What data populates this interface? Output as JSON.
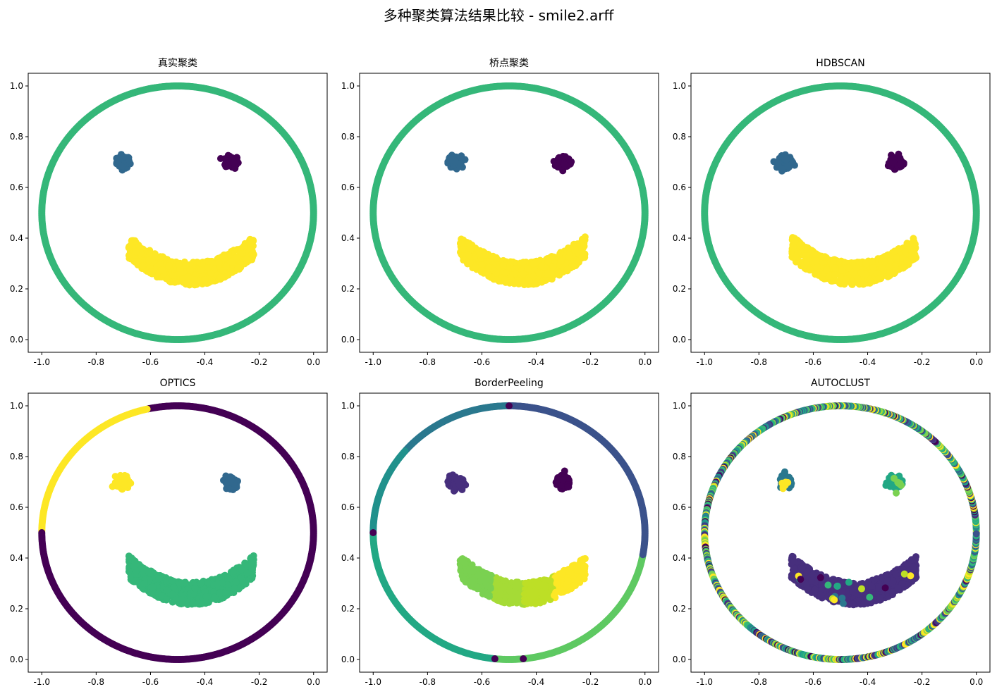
{
  "figure": {
    "title": "多种聚类算法结果比较 - smile2.arff"
  },
  "palette": {
    "purple": "#440154",
    "indigo": "#472f7d",
    "blueviolet": "#414487",
    "slate": "#3b528b",
    "blue": "#31688e",
    "teal": "#2a788e",
    "cyan": "#21918c",
    "seagreen": "#22a884",
    "green": "#35b779",
    "lightgreen": "#5ec962",
    "lime": "#7ad151",
    "yellowgreen": "#a5db36",
    "olive": "#bddf26",
    "yellow": "#fde725"
  },
  "chart_data": [
    {
      "type": "scatter",
      "title": "真实聚类",
      "xlim": [
        -1.05,
        0.05
      ],
      "ylim": [
        -0.05,
        1.05
      ],
      "xticks": [
        "-1.0",
        "-0.8",
        "-0.6",
        "-0.4",
        "-0.2",
        "0.0"
      ],
      "yticks": [
        "0.0",
        "0.2",
        "0.4",
        "0.6",
        "0.8",
        "1.0"
      ],
      "ring": [
        {
          "from": 0,
          "to": 360,
          "color": "green"
        }
      ],
      "clusters": {
        "left_eye": "blue",
        "right_eye": "purple",
        "mouth": [
          "yellow"
        ]
      },
      "ring_noise": false
    },
    {
      "type": "scatter",
      "title": "桥点聚类",
      "xlim": [
        -1.05,
        0.05
      ],
      "ylim": [
        -0.05,
        1.05
      ],
      "xticks": [
        "-1.0",
        "-0.8",
        "-0.6",
        "-0.4",
        "-0.2",
        "0.0"
      ],
      "yticks": [
        "0.0",
        "0.2",
        "0.4",
        "0.6",
        "0.8",
        "1.0"
      ],
      "ring": [
        {
          "from": 0,
          "to": 360,
          "color": "green"
        }
      ],
      "clusters": {
        "left_eye": "blue",
        "right_eye": "purple",
        "mouth": [
          "yellow"
        ]
      },
      "ring_noise": false
    },
    {
      "type": "scatter",
      "title": "HDBSCAN",
      "xlim": [
        -1.05,
        0.05
      ],
      "ylim": [
        -0.05,
        1.05
      ],
      "xticks": [
        "-1.0",
        "-0.8",
        "-0.6",
        "-0.4",
        "-0.2",
        "0.0"
      ],
      "yticks": [
        "0.0",
        "0.2",
        "0.4",
        "0.6",
        "0.8",
        "1.0"
      ],
      "ring": [
        {
          "from": 0,
          "to": 360,
          "color": "green"
        }
      ],
      "clusters": {
        "left_eye": "blue",
        "right_eye": "purple",
        "mouth": [
          "yellow"
        ]
      },
      "ring_noise": false
    },
    {
      "type": "scatter",
      "title": "OPTICS",
      "xlim": [
        -1.05,
        0.05
      ],
      "ylim": [
        -0.05,
        1.05
      ],
      "xticks": [
        "-1.0",
        "-0.8",
        "-0.6",
        "-0.4",
        "-0.2",
        "0.0"
      ],
      "yticks": [
        "0.0",
        "0.2",
        "0.4",
        "0.6",
        "0.8",
        "1.0"
      ],
      "ring": [
        {
          "from": 0,
          "to": 103,
          "color": "purple"
        },
        {
          "from": 103,
          "to": 180,
          "color": "yellow"
        },
        {
          "from": 180,
          "to": 360,
          "color": "purple"
        }
      ],
      "clusters": {
        "left_eye": "yellow",
        "right_eye": "blue",
        "mouth": [
          "green"
        ]
      },
      "ring_noise": false
    },
    {
      "type": "scatter",
      "title": "BorderPeeling",
      "xlim": [
        -1.05,
        0.05
      ],
      "ylim": [
        -0.05,
        1.05
      ],
      "xticks": [
        "-1.0",
        "-0.8",
        "-0.6",
        "-0.4",
        "-0.2",
        "0.0"
      ],
      "yticks": [
        "0.0",
        "0.2",
        "0.4",
        "0.6",
        "0.8",
        "1.0"
      ],
      "ring": [
        {
          "from": 0,
          "to": 90,
          "color": "slate"
        },
        {
          "from": 90,
          "to": 140,
          "color": "teal"
        },
        {
          "from": 140,
          "to": 180,
          "color": "cyan"
        },
        {
          "from": 180,
          "to": 265,
          "color": "seagreen"
        },
        {
          "from": 265,
          "to": 350,
          "color": "lightgreen"
        },
        {
          "from": 350,
          "to": 360,
          "color": "slate"
        }
      ],
      "ring_marks": [
        {
          "angle": 90,
          "color": "purple"
        },
        {
          "angle": 180,
          "color": "purple"
        },
        {
          "angle": 264,
          "color": "purple"
        },
        {
          "angle": 276,
          "color": "purple"
        }
      ],
      "clusters": {
        "left_eye": "indigo",
        "right_eye": "purple",
        "mouth": [
          "lime",
          "yellowgreen",
          "olive",
          "yellow"
        ]
      },
      "ring_noise": false
    },
    {
      "type": "scatter",
      "title": "AUTOCLUST",
      "xlim": [
        -1.05,
        0.05
      ],
      "ylim": [
        -0.05,
        1.05
      ],
      "xticks": [
        "-1.0",
        "-0.8",
        "-0.6",
        "-0.4",
        "-0.2",
        "0.0"
      ],
      "yticks": [
        "0.0",
        "0.2",
        "0.4",
        "0.6",
        "0.8",
        "1.0"
      ],
      "ring": [],
      "clusters": {
        "left_eye": "teal",
        "right_eye": "seagreen",
        "mouth": [
          "indigo"
        ]
      },
      "ring_noise": true
    }
  ]
}
